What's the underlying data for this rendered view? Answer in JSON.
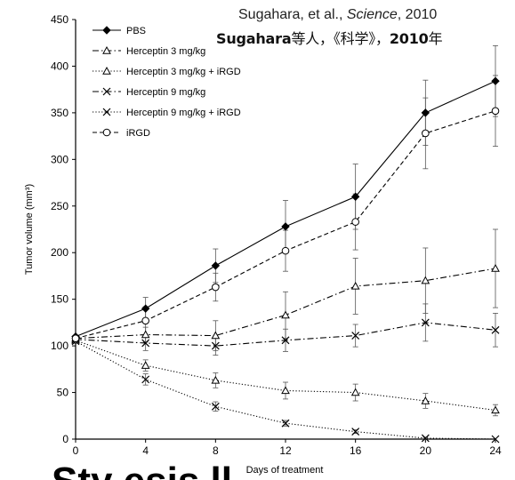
{
  "caption": {
    "line1_prefix": "Sugahara, et al., ",
    "line1_journal": "Science",
    "line1_suffix": ", 2010",
    "line2_name": "Sugahara",
    "line2_text1": "等人，《科学》，",
    "line2_year": "2010",
    "line2_text2": "年"
  },
  "bottom_partial_text": "Sty           esis     ll ",
  "chart_data": {
    "type": "line",
    "title": "",
    "xlabel": "Days of treatment",
    "ylabel": "Tumor volume (mm³)",
    "x": [
      0,
      4,
      8,
      12,
      16,
      20,
      24
    ],
    "xlim": [
      0,
      24
    ],
    "ylim": [
      0,
      450
    ],
    "xticks": [
      "0",
      "4",
      "8",
      "12",
      "16",
      "20",
      "24"
    ],
    "yticks": [
      "0",
      "50",
      "100",
      "150",
      "200",
      "250",
      "300",
      "350",
      "400",
      "450"
    ],
    "grid": false,
    "legend_position": "top-left",
    "series": [
      {
        "name": "PBS",
        "marker": "diamond",
        "dash": "solid",
        "values": [
          110,
          140,
          186,
          228,
          260,
          350,
          384
        ],
        "err": [
          0,
          12,
          18,
          28,
          35,
          35,
          38
        ]
      },
      {
        "name": "Herceptin 3 mg/kg",
        "marker": "triangle",
        "dash": "dashdot",
        "values": [
          108,
          112,
          111,
          133,
          164,
          170,
          183
        ],
        "err": [
          0,
          8,
          16,
          25,
          30,
          35,
          42
        ]
      },
      {
        "name": "Herceptin 3 mg/kg + iRGD",
        "marker": "triangle",
        "dash": "dot",
        "values": [
          106,
          79,
          63,
          52,
          50,
          41,
          31
        ],
        "err": [
          0,
          6,
          8,
          9,
          9,
          8,
          6
        ]
      },
      {
        "name": "Herceptin 9 mg/kg",
        "marker": "x",
        "dash": "dashdot",
        "values": [
          107,
          103,
          100,
          106,
          111,
          125,
          117
        ],
        "err": [
          0,
          8,
          10,
          12,
          12,
          20,
          18
        ]
      },
      {
        "name": "Herceptin 9 mg/kg + iRGD",
        "marker": "x",
        "dash": "dot",
        "values": [
          105,
          64,
          35,
          17,
          8,
          1,
          0
        ],
        "err": [
          0,
          6,
          5,
          3,
          2,
          1,
          0
        ]
      },
      {
        "name": "iRGD",
        "marker": "circle",
        "dash": "dash",
        "values": [
          108,
          127,
          163,
          202,
          233,
          328,
          352
        ],
        "err": [
          0,
          15,
          15,
          22,
          30,
          38,
          38
        ]
      }
    ]
  }
}
